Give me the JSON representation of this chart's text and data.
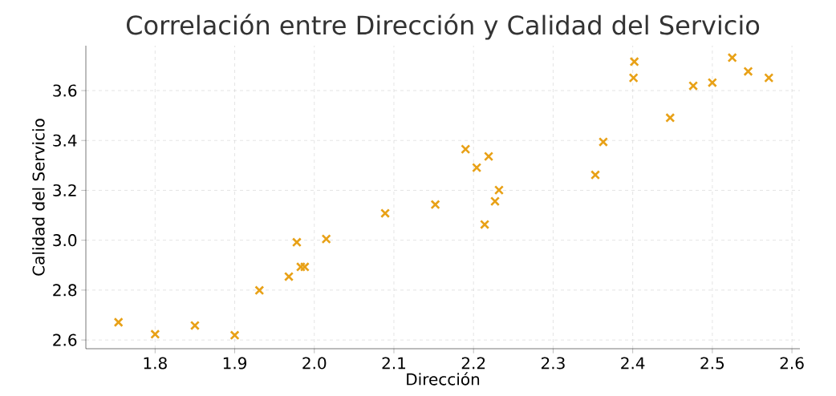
{
  "chart_data": {
    "type": "scatter",
    "title": "Correlación entre Dirección y Calidad del Servicio",
    "xlabel": "Dirección",
    "ylabel": "Calidad del Servicio",
    "marker": "cross",
    "grid": true,
    "series": [
      {
        "color": "#e8a117",
        "x": [
          1.754,
          1.8,
          1.85,
          1.9,
          1.931,
          1.968,
          1.978,
          1.983,
          1.988,
          2.015,
          2.089,
          2.152,
          2.19,
          2.204,
          2.219,
          2.214,
          2.227,
          2.232,
          2.353,
          2.363,
          2.402,
          2.401,
          2.447,
          2.476,
          2.5,
          2.525,
          2.545,
          2.571
        ],
        "values": [
          2.671,
          2.623,
          2.658,
          2.619,
          2.799,
          2.854,
          2.992,
          2.893,
          2.893,
          3.005,
          3.108,
          3.143,
          3.365,
          3.291,
          3.336,
          3.063,
          3.156,
          3.201,
          3.262,
          3.394,
          3.716,
          3.651,
          3.491,
          3.619,
          3.632,
          3.732,
          3.677,
          3.651
        ]
      }
    ],
    "xlim": [
      1.713,
      2.61
    ],
    "ylim": [
      2.565,
      3.78
    ],
    "xticks": [
      1.8,
      1.9,
      {
        "value": 2,
        "label": "2.0"
      },
      2.1,
      2.2,
      2.3,
      2.4,
      2.5,
      2.6
    ],
    "yticks": [
      2.6,
      2.8,
      {
        "value": 3,
        "label": "3.0"
      },
      3.2,
      3.4,
      3.6
    ]
  }
}
